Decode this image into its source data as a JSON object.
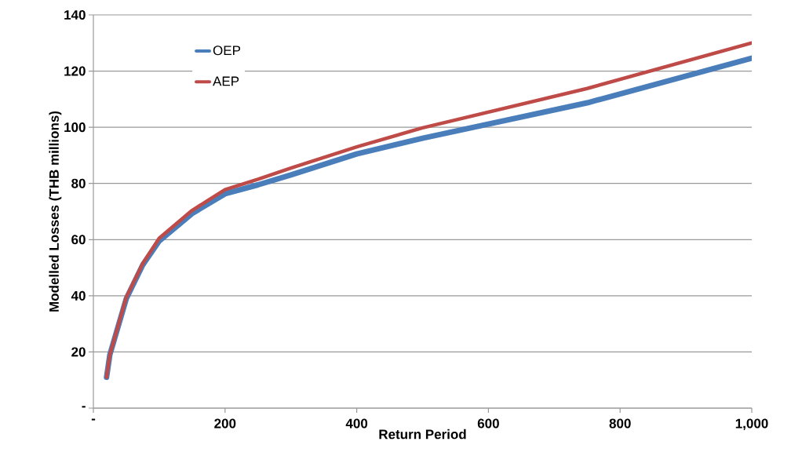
{
  "chart_data": {
    "type": "line",
    "xlabel": "Return Period",
    "ylabel": "Modelled Losses (THB millions)",
    "xlim": [
      0,
      1000
    ],
    "ylim": [
      0,
      140
    ],
    "xticks": [
      {
        "value": 0,
        "label": "-"
      },
      200,
      400,
      600,
      800,
      {
        "value": 1000,
        "label": "1,000"
      }
    ],
    "yticks": [
      {
        "value": 0,
        "label": "-"
      },
      20,
      40,
      60,
      80,
      100,
      120,
      140
    ],
    "grid": "y",
    "legend": "top left",
    "line_style": "solid",
    "marker": "none",
    "series": [
      {
        "name": "OEP",
        "color": "#4a7ebb",
        "x": [
          20,
          25,
          50,
          75,
          100,
          150,
          200,
          250,
          300,
          400,
          500,
          750,
          1000
        ],
        "values": [
          11,
          19,
          39,
          51,
          59.5,
          69.3,
          76.3,
          79.5,
          83,
          90.5,
          96.1,
          108.7,
          124.6
        ]
      },
      {
        "name": "AEP",
        "color": "#be4b48",
        "x": [
          20,
          25,
          50,
          75,
          100,
          150,
          200,
          250,
          300,
          400,
          500,
          750,
          1000
        ],
        "values": [
          11,
          19,
          39.5,
          51.5,
          60.5,
          70.4,
          77.8,
          81.5,
          85.5,
          93,
          99.8,
          113.8,
          130
        ]
      }
    ]
  }
}
